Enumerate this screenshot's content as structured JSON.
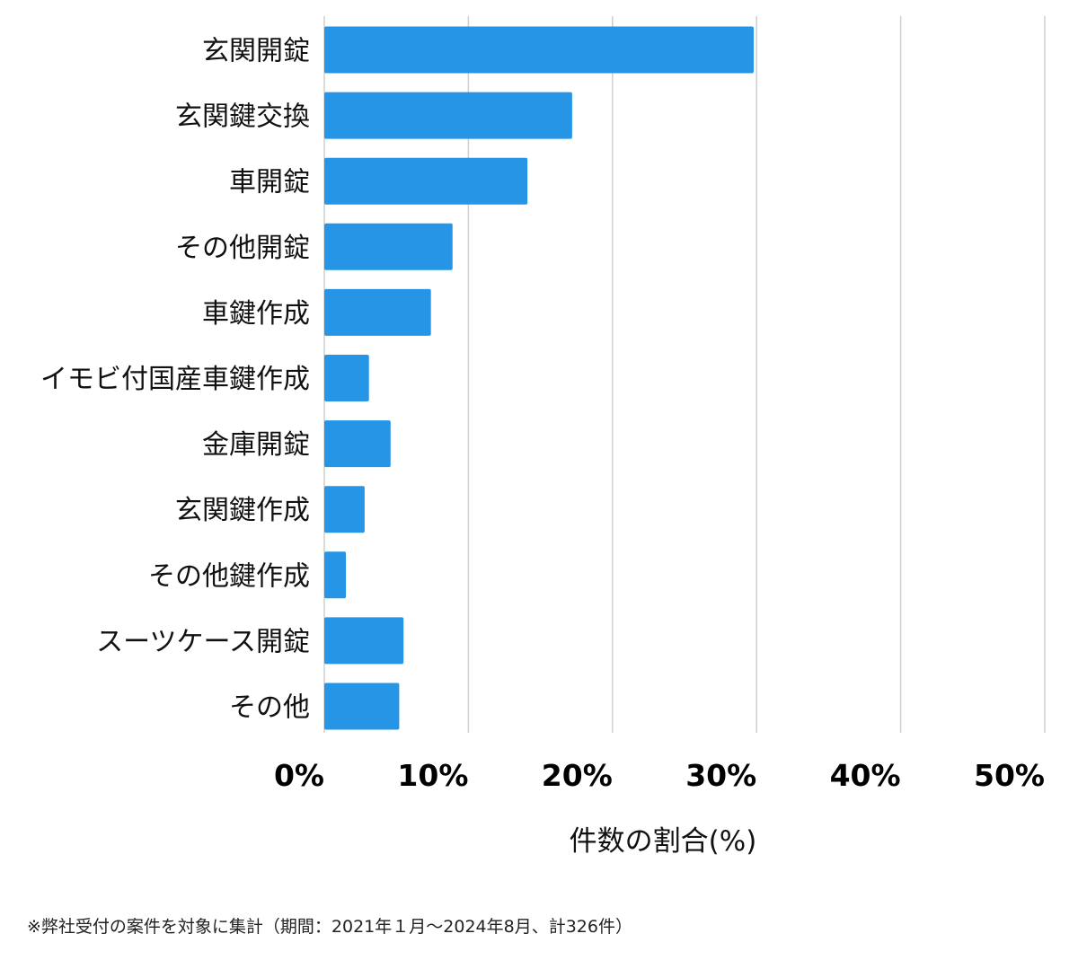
{
  "chart_data": {
    "type": "bar",
    "orientation": "horizontal",
    "categories": [
      "玄関開錠",
      "玄関鍵交換",
      "車開錠",
      "その他開錠",
      "車鍵作成",
      "イモビ付国産車鍵作成",
      "金庫開錠",
      "玄関鍵作成",
      "その他鍵作成",
      "スーツケース開錠",
      "その他"
    ],
    "values": [
      29.8,
      17.2,
      14.1,
      8.9,
      7.4,
      3.1,
      4.6,
      2.8,
      1.5,
      5.5,
      5.2
    ],
    "xlim": [
      0,
      50
    ],
    "xticks": [
      0,
      10,
      20,
      30,
      40,
      50
    ],
    "tick_suffix": "%",
    "xlabel": "件数の割合(%)",
    "ylabel": "",
    "title": "",
    "grid": true,
    "bar_color": "#2695e6"
  },
  "footnote": "※弊社受付の案件を対象に集計（期間：2021年１月〜2024年8月、計326件）"
}
